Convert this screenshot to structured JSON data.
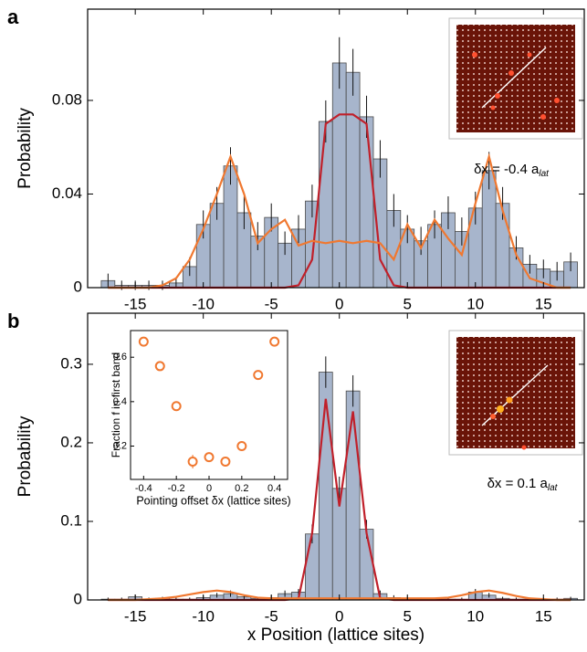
{
  "chart_data": [
    {
      "type": "histogram",
      "panel_label": "a",
      "y_label": "Probability",
      "caption": {
        "text": "δx = -0.4 a",
        "subscript": "lat"
      },
      "x": [
        -17,
        -16,
        -15,
        -14,
        -13,
        -12,
        -11,
        -10,
        -9,
        -8,
        -7,
        -6,
        -5,
        -4,
        -3,
        -2,
        -1,
        0,
        1,
        2,
        3,
        4,
        5,
        6,
        7,
        8,
        9,
        10,
        11,
        12,
        13,
        14,
        15,
        16,
        17
      ],
      "values": [
        0.003,
        0.001,
        0.001,
        0.001,
        0.001,
        0.002,
        0.009,
        0.027,
        0.036,
        0.052,
        0.032,
        0.022,
        0.03,
        0.019,
        0.025,
        0.037,
        0.071,
        0.096,
        0.092,
        0.073,
        0.055,
        0.033,
        0.025,
        0.02,
        0.027,
        0.032,
        0.024,
        0.034,
        0.05,
        0.036,
        0.017,
        0.01,
        0.008,
        0.007,
        0.011
      ],
      "errors": [
        0.003,
        0.002,
        0.002,
        0.002,
        0.002,
        0.002,
        0.004,
        0.006,
        0.007,
        0.008,
        0.007,
        0.006,
        0.006,
        0.005,
        0.006,
        0.007,
        0.009,
        0.011,
        0.01,
        0.009,
        0.008,
        0.007,
        0.006,
        0.006,
        0.006,
        0.007,
        0.006,
        0.007,
        0.008,
        0.007,
        0.005,
        0.004,
        0.004,
        0.004,
        0.004
      ],
      "color": "#a7b5cc",
      "lines": [
        {
          "color": "#c0202a",
          "values": [
            0,
            0,
            0,
            0,
            0,
            0,
            0,
            0,
            0,
            0,
            0,
            0,
            0,
            0,
            0.001,
            0.012,
            0.07,
            0.074,
            0.074,
            0.07,
            0.012,
            0.001,
            0,
            0,
            0,
            0,
            0,
            0,
            0,
            0,
            0,
            0,
            0,
            0,
            0
          ]
        },
        {
          "color": "#f07830",
          "values": [
            0,
            0,
            0,
            0,
            0.001,
            0.004,
            0.012,
            0.025,
            0.04,
            0.056,
            0.04,
            0.019,
            0.025,
            0.029,
            0.018,
            0.02,
            0.019,
            0.02,
            0.019,
            0.02,
            0.019,
            0.012,
            0.027,
            0.017,
            0.029,
            0.021,
            0.014,
            0.036,
            0.056,
            0.033,
            0.014,
            0.004,
            0.002,
            0,
            0
          ]
        }
      ],
      "xlim": [
        -18.5,
        18
      ],
      "ylim": [
        0,
        0.119
      ],
      "xticks": [
        -15,
        -10,
        -5,
        0,
        5,
        10,
        15
      ],
      "yticks": [
        0,
        0.04,
        0.08
      ]
    },
    {
      "type": "histogram",
      "panel_label": "b",
      "y_label": "Probability",
      "x_label": "x Position (lattice sites)",
      "caption": {
        "text": "δx = 0.1 a",
        "subscript": "lat"
      },
      "x": [
        -17,
        -16,
        -15,
        -14,
        -13,
        -12,
        -11,
        -10,
        -9,
        -8,
        -7,
        -6,
        -5,
        -4,
        -3,
        -2,
        -1,
        0,
        1,
        2,
        3,
        4,
        5,
        6,
        7,
        8,
        9,
        10,
        11,
        12,
        13,
        14,
        15,
        16,
        17
      ],
      "values": [
        0.001,
        0.001,
        0.004,
        0.001,
        0.002,
        0.001,
        0.001,
        0.003,
        0.006,
        0.008,
        0.004,
        0.002,
        0.003,
        0.008,
        0.01,
        0.084,
        0.29,
        0.142,
        0.266,
        0.09,
        0.008,
        0.003,
        0.002,
        0.001,
        0.001,
        0.001,
        0.001,
        0.01,
        0.006,
        0.002,
        0.001,
        0.001,
        0.001,
        0.001,
        0.002
      ],
      "errors": [
        0.002,
        0.002,
        0.003,
        0.002,
        0.002,
        0.002,
        0.002,
        0.003,
        0.003,
        0.004,
        0.003,
        0.002,
        0.003,
        0.004,
        0.004,
        0.012,
        0.02,
        0.015,
        0.02,
        0.012,
        0.004,
        0.003,
        0.002,
        0.002,
        0.002,
        0.002,
        0.002,
        0.004,
        0.003,
        0.002,
        0.002,
        0.002,
        0.002,
        0.002,
        0.002
      ],
      "color": "#a7b5cc",
      "lines": [
        {
          "color": "#c0202a",
          "values": [
            0,
            0,
            0,
            0,
            0,
            0,
            0,
            0,
            0,
            0,
            0,
            0,
            0,
            0,
            0.002,
            0.085,
            0.256,
            0.119,
            0.24,
            0.085,
            0.002,
            0,
            0,
            0,
            0,
            0,
            0,
            0,
            0,
            0,
            0,
            0,
            0,
            0,
            0
          ]
        },
        {
          "color": "#f07830",
          "values": [
            0,
            0,
            0,
            0.001,
            0.002,
            0.004,
            0.007,
            0.01,
            0.012,
            0.01,
            0.006,
            0.003,
            0.002,
            0.002,
            0.002,
            0.002,
            0.002,
            0.002,
            0.002,
            0.002,
            0.002,
            0.002,
            0.002,
            0.002,
            0.002,
            0.003,
            0.006,
            0.01,
            0.012,
            0.009,
            0.005,
            0.002,
            0.001,
            0,
            0
          ]
        }
      ],
      "xlim": [
        -18.5,
        18
      ],
      "ylim": [
        0,
        0.365
      ],
      "xticks": [
        -15,
        -10,
        -5,
        0,
        5,
        10,
        15
      ],
      "yticks": [
        0,
        0.1,
        0.2,
        0.3
      ]
    },
    {
      "type": "scatter",
      "y_label": "Fraction f in first band",
      "x_label": "Pointing offset δx (lattice sites)",
      "x": [
        -0.4,
        -0.3,
        -0.2,
        -0.1,
        0,
        0.1,
        0.2,
        0.3,
        0.4
      ],
      "values": [
        0.67,
        0.56,
        0.38,
        0.13,
        0.15,
        0.13,
        0.2,
        0.52,
        0.67
      ],
      "errors": [
        0.015,
        0.015,
        0.015,
        0.03,
        0.015,
        0.015,
        0.015,
        0.02,
        0.015
      ],
      "color": "#f07830",
      "xlim": [
        -0.48,
        0.48
      ],
      "ylim": [
        0.05,
        0.72
      ],
      "xticks": [
        -0.4,
        -0.2,
        0,
        0.2,
        0.4
      ],
      "yticks": [
        0.2,
        0.4,
        0.6
      ]
    }
  ]
}
